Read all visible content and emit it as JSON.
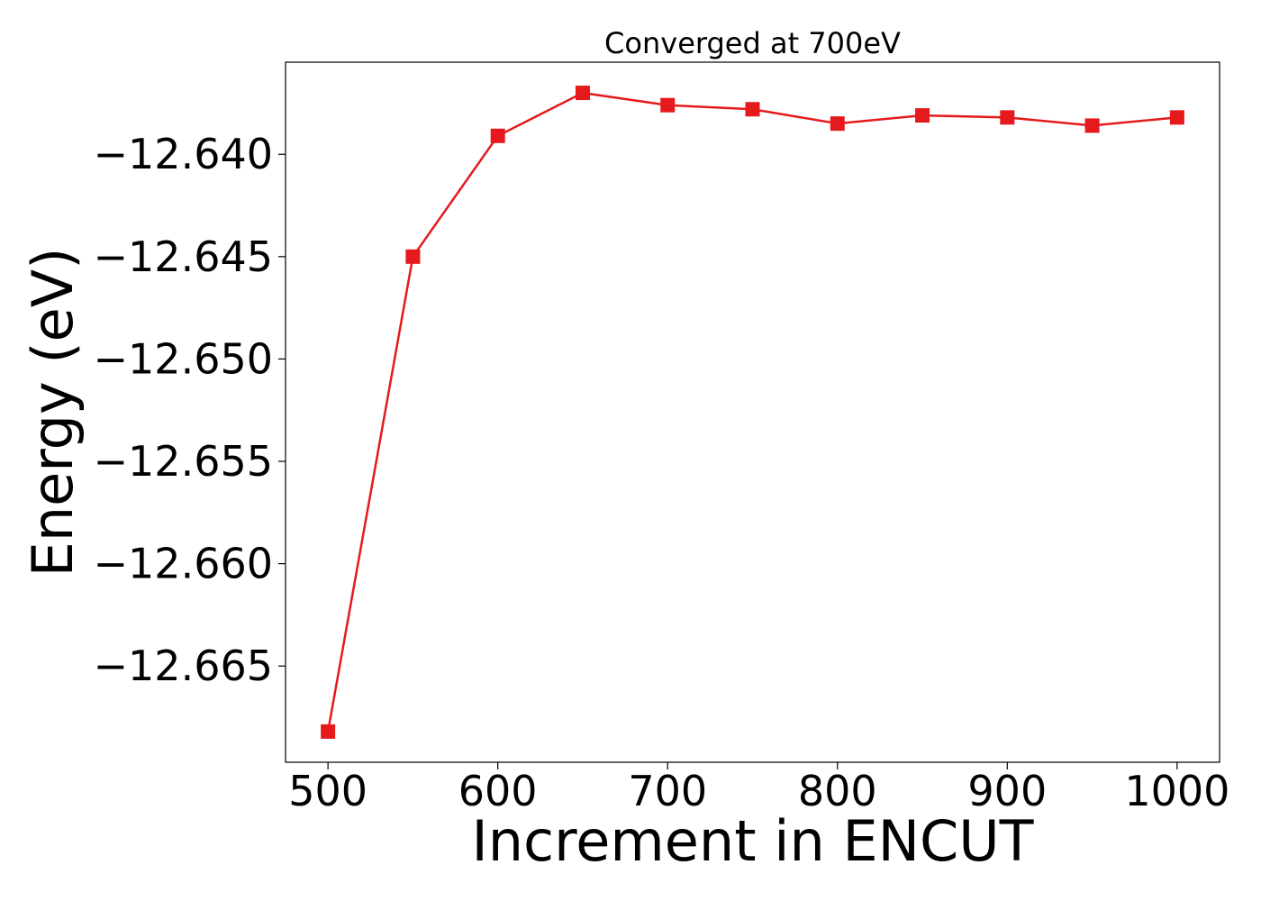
{
  "chart_data": {
    "type": "line",
    "title": "Converged at 700eV",
    "xlabel": "Increment in ENCUT",
    "ylabel": "Energy (eV)",
    "x": [
      500,
      550,
      600,
      650,
      700,
      750,
      800,
      850,
      900,
      950,
      1000
    ],
    "series": [
      {
        "values": [
          -12.6682,
          -12.645,
          -12.6391,
          -12.637,
          -12.6376,
          -12.6378,
          -12.6385,
          -12.6381,
          -12.6382,
          -12.6386,
          -12.6382
        ],
        "color": "#e41a1c",
        "marker": "square"
      }
    ],
    "xticks": [
      500,
      600,
      700,
      800,
      900,
      1000
    ],
    "xtick_labels": [
      "500",
      "600",
      "700",
      "800",
      "900",
      "1000"
    ],
    "yticks": [
      -12.665,
      -12.66,
      -12.655,
      -12.65,
      -12.645,
      -12.64
    ],
    "ytick_labels": [
      "−12.665",
      "−12.660",
      "−12.655",
      "−12.650",
      "−12.645",
      "−12.640"
    ],
    "xlim": [
      475,
      1025
    ],
    "ylim": [
      -12.6697,
      -12.6355
    ],
    "grid": false,
    "legend": "none"
  }
}
